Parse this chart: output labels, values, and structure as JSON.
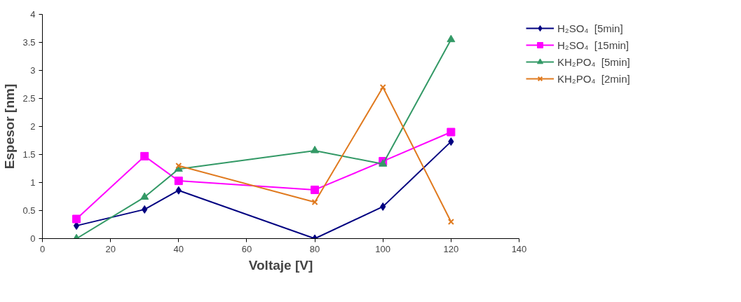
{
  "chart_data": {
    "type": "line",
    "xlabel": "Voltaje [V]",
    "ylabel": "Espesor [nm]",
    "xlim": [
      0,
      140
    ],
    "xticks": [
      0,
      20,
      40,
      60,
      80,
      100,
      120,
      140
    ],
    "ylim": [
      0,
      4
    ],
    "yticks": [
      0,
      0.5,
      1,
      1.5,
      2,
      2.5,
      3,
      3.5,
      4
    ],
    "grid": false,
    "legend": "right",
    "line_style": "solid",
    "series": [
      {
        "name": "H₂SO₄  [5min]",
        "color": "#000080",
        "marker": "diamond",
        "x": [
          10,
          30,
          40,
          80,
          100,
          120
        ],
        "values": [
          0.23,
          0.52,
          0.86,
          0,
          0.57,
          1.73
        ]
      },
      {
        "name": "H₂SO₄  [15min]",
        "color": "#ff00ff",
        "marker": "square",
        "x": [
          10,
          30,
          40,
          80,
          100,
          120
        ],
        "values": [
          0.35,
          1.47,
          1.03,
          0.87,
          1.38,
          1.9
        ]
      },
      {
        "name": "KH₂PO₄  [5min]",
        "color": "#339966",
        "marker": "triangle",
        "x": [
          10,
          30,
          40,
          80,
          100,
          120
        ],
        "values": [
          0,
          0.74,
          1.24,
          1.57,
          1.33,
          3.55
        ]
      },
      {
        "name": "KH₂PO₄  [2min]",
        "color": "#e07a1f",
        "marker": "x",
        "x": [
          40,
          80,
          100,
          120
        ],
        "values": [
          1.3,
          0.65,
          2.7,
          0.3
        ]
      }
    ]
  }
}
